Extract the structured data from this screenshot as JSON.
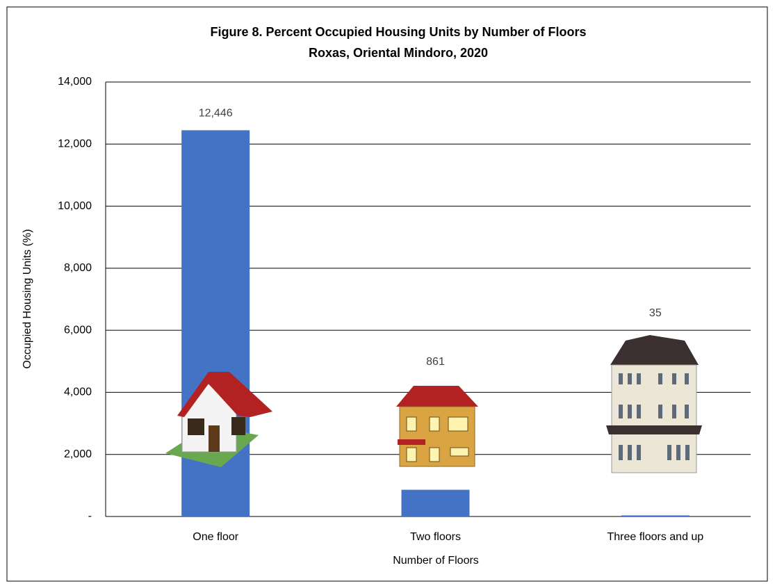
{
  "chart_data": {
    "type": "bar",
    "title": "Figure 8. Percent Occupied Housing Units by Number of Floors",
    "subtitle": "Roxas, Oriental Mindoro, 2020",
    "x_label": "Number of Floors",
    "y_label": "Occupied Housing Units (%)",
    "categories": [
      "One floor",
      "Two floors",
      "Three floors and up"
    ],
    "values": [
      12446,
      861,
      35
    ],
    "value_labels": [
      "12,446",
      "861",
      "35"
    ],
    "color": "#4472c4",
    "ylim": [
      0,
      14000
    ],
    "yticks": [
      {
        "value": 0,
        "label": "-"
      },
      {
        "value": 2000,
        "label": "2,000"
      },
      {
        "value": 4000,
        "label": "4,000"
      },
      {
        "value": 6000,
        "label": "6,000"
      },
      {
        "value": 8000,
        "label": "8,000"
      },
      {
        "value": 10000,
        "label": "10,000"
      },
      {
        "value": 12000,
        "label": "12,000"
      },
      {
        "value": 14000,
        "label": "14,000"
      }
    ],
    "grid": true
  }
}
